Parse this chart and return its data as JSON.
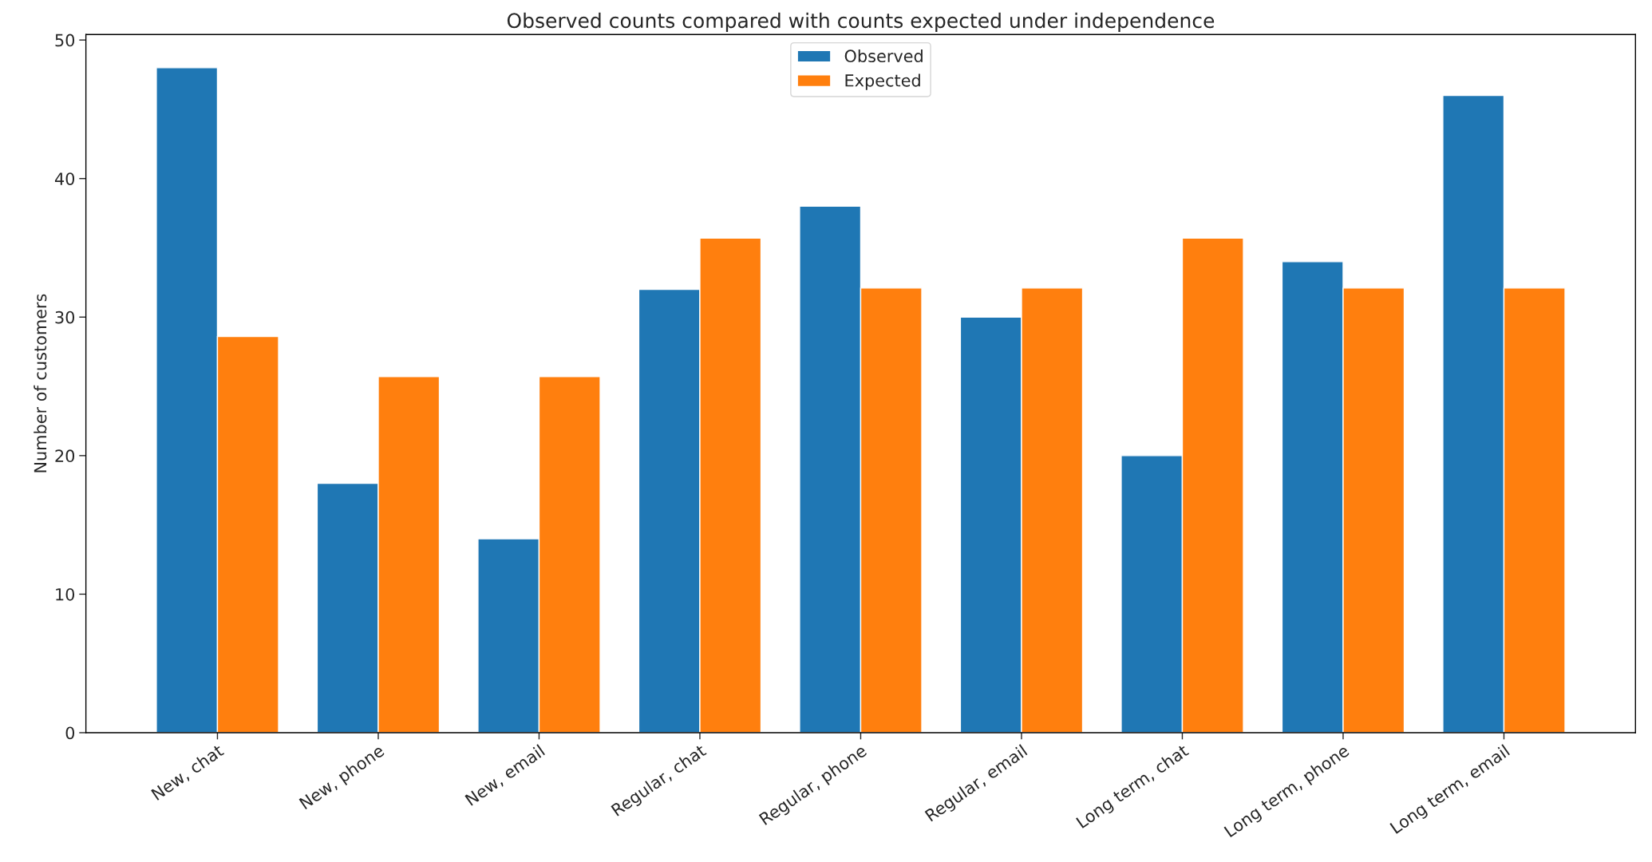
{
  "chart_data": {
    "type": "bar",
    "title": "Observed counts compared with counts expected under independence",
    "ylabel": "Number of customers",
    "categories": [
      "New, chat",
      "New, phone",
      "New, email",
      "Regular, chat",
      "Regular, phone",
      "Regular, email",
      "Long term, chat",
      "Long term, phone",
      "Long term, email"
    ],
    "series": [
      {
        "name": "Observed",
        "color": "#1f77b4",
        "values": [
          48,
          18,
          14,
          32,
          38,
          30,
          20,
          34,
          46
        ]
      },
      {
        "name": "Expected",
        "color": "#ff7f0e",
        "values": [
          28.6,
          25.7,
          25.7,
          35.7,
          32.1,
          32.1,
          35.7,
          32.1,
          32.1
        ]
      }
    ],
    "ylim": [
      0,
      50.4
    ],
    "yticks": [
      0,
      10,
      20,
      30,
      40,
      50
    ],
    "grid": false,
    "legend": "top"
  }
}
